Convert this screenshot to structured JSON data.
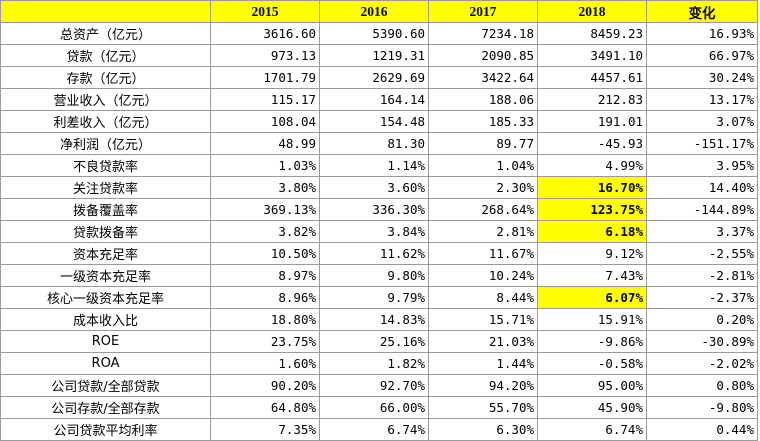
{
  "header": {
    "corner": "",
    "cols": [
      "2015",
      "2016",
      "2017",
      "2018",
      "变化"
    ]
  },
  "highlight_color": "#ffff00",
  "rows": [
    {
      "label": "总资产（亿元）",
      "values": [
        "3616.60",
        "5390.60",
        "7234.18",
        "8459.23",
        "16.93%"
      ]
    },
    {
      "label": "贷款（亿元）",
      "values": [
        "973.13",
        "1219.31",
        "2090.85",
        "3491.10",
        "66.97%"
      ]
    },
    {
      "label": "存款（亿元）",
      "values": [
        "1701.79",
        "2629.69",
        "3422.64",
        "4457.61",
        "30.24%"
      ]
    },
    {
      "label": "营业收入（亿元）",
      "values": [
        "115.17",
        "164.14",
        "188.06",
        "212.83",
        "13.17%"
      ]
    },
    {
      "label": "利差收入（亿元）",
      "values": [
        "108.04",
        "154.48",
        "185.33",
        "191.01",
        "3.07%"
      ]
    },
    {
      "label": "净利润（亿元）",
      "values": [
        "48.99",
        "81.30",
        "89.77",
        "-45.93",
        "-151.17%"
      ]
    },
    {
      "label": "不良贷款率",
      "values": [
        "1.03%",
        "1.14%",
        "1.04%",
        "4.99%",
        "3.95%"
      ]
    },
    {
      "label": "关注贷款率",
      "values": [
        "3.80%",
        "3.60%",
        "2.30%",
        "16.70%",
        "14.40%"
      ],
      "highlight": 3
    },
    {
      "label": "拨备覆盖率",
      "values": [
        "369.13%",
        "336.30%",
        "268.64%",
        "123.75%",
        "-144.89%"
      ],
      "highlight": 3
    },
    {
      "label": "贷款拨备率",
      "values": [
        "3.82%",
        "3.84%",
        "2.81%",
        "6.18%",
        "3.37%"
      ],
      "highlight": 3
    },
    {
      "label": "资本充足率",
      "values": [
        "10.50%",
        "11.62%",
        "11.67%",
        "9.12%",
        "-2.55%"
      ]
    },
    {
      "label": "一级资本充足率",
      "values": [
        "8.97%",
        "9.80%",
        "10.24%",
        "7.43%",
        "-2.81%"
      ]
    },
    {
      "label": "核心一级资本充足率",
      "values": [
        "8.96%",
        "9.79%",
        "8.44%",
        "6.07%",
        "-2.37%"
      ],
      "highlight": 3
    },
    {
      "label": "成本收入比",
      "values": [
        "18.80%",
        "14.83%",
        "15.71%",
        "15.91%",
        "0.20%"
      ]
    },
    {
      "label": "ROE",
      "values": [
        "23.75%",
        "25.16%",
        "21.03%",
        "-9.86%",
        "-30.89%"
      ]
    },
    {
      "label": "ROA",
      "values": [
        "1.60%",
        "1.82%",
        "1.44%",
        "-0.58%",
        "-2.02%"
      ]
    },
    {
      "label": "公司贷款/全部贷款",
      "values": [
        "90.20%",
        "92.70%",
        "94.20%",
        "95.00%",
        "0.80%"
      ]
    },
    {
      "label": "公司存款/全部存款",
      "values": [
        "64.80%",
        "66.00%",
        "55.70%",
        "45.90%",
        "-9.80%"
      ]
    },
    {
      "label": "公司贷款平均利率",
      "values": [
        "7.35%",
        "6.74%",
        "6.30%",
        "6.74%",
        "0.44%"
      ]
    }
  ]
}
